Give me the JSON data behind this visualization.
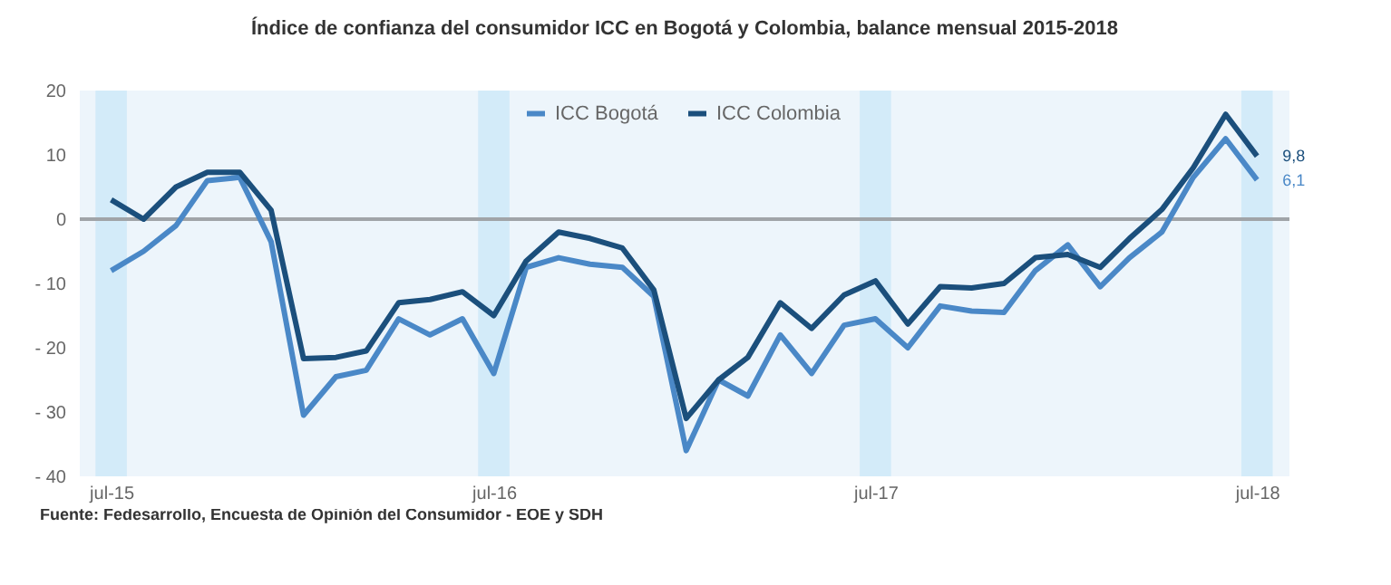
{
  "chart_data": {
    "type": "line",
    "title": "Índice de confianza del consumidor ICC en Bogotá y Colombia, balance mensual 2015-2018",
    "x": [
      "2015-07",
      "2015-08",
      "2015-09",
      "2015-10",
      "2015-11",
      "2015-12",
      "2016-01",
      "2016-02",
      "2016-03",
      "2016-04",
      "2016-05",
      "2016-06",
      "2016-07",
      "2016-08",
      "2016-09",
      "2016-10",
      "2016-11",
      "2016-12",
      "2017-01",
      "2017-02",
      "2017-03",
      "2017-04",
      "2017-05",
      "2017-06",
      "2017-07",
      "2017-08",
      "2017-09",
      "2017-10",
      "2017-11",
      "2017-12",
      "2018-01",
      "2018-02",
      "2018-03",
      "2018-04",
      "2018-05",
      "2018-06",
      "2018-07"
    ],
    "series": [
      {
        "name": "ICC Bogotá",
        "color": "#4a88c7",
        "values": [
          -8,
          -5,
          -1,
          6,
          6.5,
          -3.5,
          -30.5,
          -24.5,
          -23.5,
          -15.5,
          -18,
          -15.5,
          -24,
          -7.5,
          -6,
          -7,
          -7.5,
          -12,
          -36,
          -25,
          -27.5,
          -18,
          -24,
          -16.5,
          -15.5,
          -20,
          -13.5,
          -14.3,
          -14.5,
          -8,
          -4,
          -10.5,
          -6,
          -2,
          6.5,
          12.5,
          6.1
        ],
        "value_labels": [
          null,
          null,
          null,
          null,
          null,
          null,
          null,
          null,
          null,
          null,
          null,
          null,
          null,
          null,
          null,
          null,
          null,
          null,
          null,
          null,
          null,
          null,
          null,
          null,
          null,
          null,
          null,
          null,
          null,
          null,
          null,
          null,
          null,
          null,
          null,
          null,
          "6,1"
        ]
      },
      {
        "name": "ICC Colombia",
        "color": "#1b4f7c",
        "values": [
          3,
          0,
          5,
          7.3,
          7.3,
          1.4,
          -21.7,
          -21.5,
          -20.5,
          -13,
          -12.5,
          -11.3,
          -15,
          -6.5,
          -2,
          -3,
          -4.5,
          -11,
          -31,
          -25,
          -21.5,
          -13,
          -17,
          -11.8,
          -9.6,
          -16.3,
          -10.5,
          -10.7,
          -10,
          -6,
          -5.5,
          -7.5,
          -3,
          1.5,
          8,
          16.3,
          9.8
        ],
        "value_labels": [
          null,
          null,
          null,
          null,
          null,
          null,
          null,
          null,
          null,
          null,
          null,
          null,
          null,
          null,
          null,
          null,
          null,
          null,
          null,
          null,
          null,
          null,
          null,
          null,
          null,
          null,
          null,
          null,
          null,
          null,
          null,
          null,
          null,
          null,
          null,
          null,
          "9,8"
        ]
      }
    ],
    "xlim": [
      "2015-06-01",
      "2018-08-01"
    ],
    "xticks": [
      {
        "value": "2015-07",
        "label": "jul-15"
      },
      {
        "value": "2016-07",
        "label": "jul-16"
      },
      {
        "value": "2017-07",
        "label": "jul-17"
      },
      {
        "value": "2018-07",
        "label": "jul-18"
      }
    ],
    "ylim": [
      -40,
      20
    ],
    "yticks": [
      {
        "value": -40,
        "label": "- 40"
      },
      {
        "value": -30,
        "label": "- 30"
      },
      {
        "value": -20,
        "label": "- 20"
      },
      {
        "value": -10,
        "label": "- 10"
      },
      0,
      10,
      20
    ],
    "ref_lines": [
      {
        "axis": "y",
        "value": 0,
        "color": "#a0a4a8"
      }
    ],
    "bands": [
      {
        "axis": "x",
        "from": "2015-06-16",
        "to": "2015-07-16",
        "color": "#d3ebf9"
      },
      {
        "axis": "x",
        "from": "2016-06-16",
        "to": "2016-07-16",
        "color": "#d3ebf9"
      },
      {
        "axis": "x",
        "from": "2017-06-16",
        "to": "2017-07-16",
        "color": "#d3ebf9"
      },
      {
        "axis": "x",
        "from": "2018-06-16",
        "to": "2018-07-16",
        "color": "#d3ebf9"
      }
    ],
    "legend": "top",
    "annotations": [
      "Fuente: Fedesarrollo, Encuesta de Opinión del Consumidor - EOE y SDH"
    ]
  }
}
